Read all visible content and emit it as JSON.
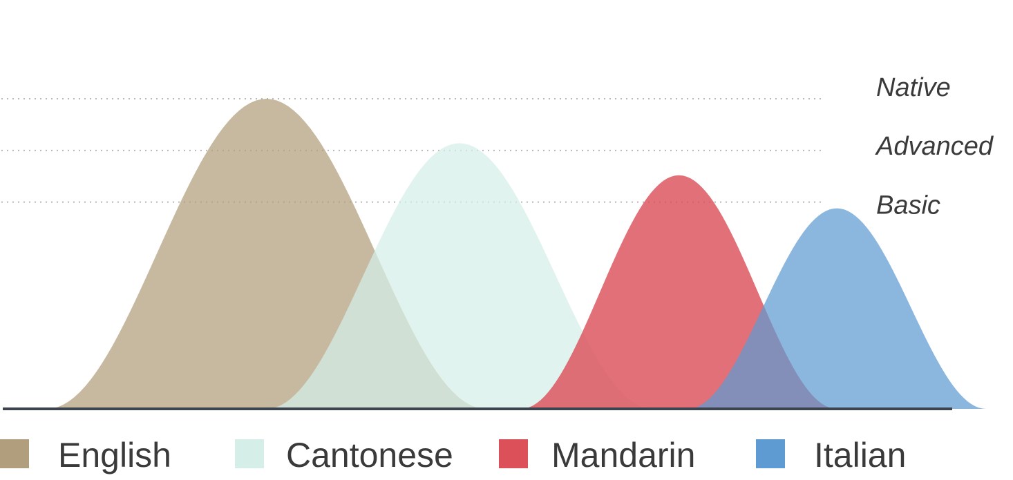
{
  "chart_data": {
    "type": "area",
    "title": "",
    "xlabel": "",
    "ylabel": "",
    "y_levels": [
      {
        "label": "Native",
        "value": 3
      },
      {
        "label": "Advanced",
        "value": 2.5
      },
      {
        "label": "Basic",
        "value": 2
      }
    ],
    "ylim": [
      0,
      3
    ],
    "grid": "dotted horizontal lines at level values",
    "legend_placement": "bottom",
    "series": [
      {
        "name": "English",
        "color": "#b09e7c",
        "fill_opacity": 0.72,
        "peak": 3.0,
        "center": 0.28,
        "half_width": 0.25
      },
      {
        "name": "Cantonese",
        "color": "#d6eee8",
        "fill_opacity": 0.72,
        "peak": 2.57,
        "center": 0.5,
        "half_width": 0.22
      },
      {
        "name": "Mandarin",
        "color": "#dc505a",
        "fill_opacity": 0.82,
        "peak": 2.26,
        "center": 0.75,
        "half_width": 0.18
      },
      {
        "name": "Italian",
        "color": "#5e9bd3",
        "fill_opacity": 0.72,
        "peak": 1.94,
        "center": 0.93,
        "half_width": 0.17
      }
    ]
  }
}
